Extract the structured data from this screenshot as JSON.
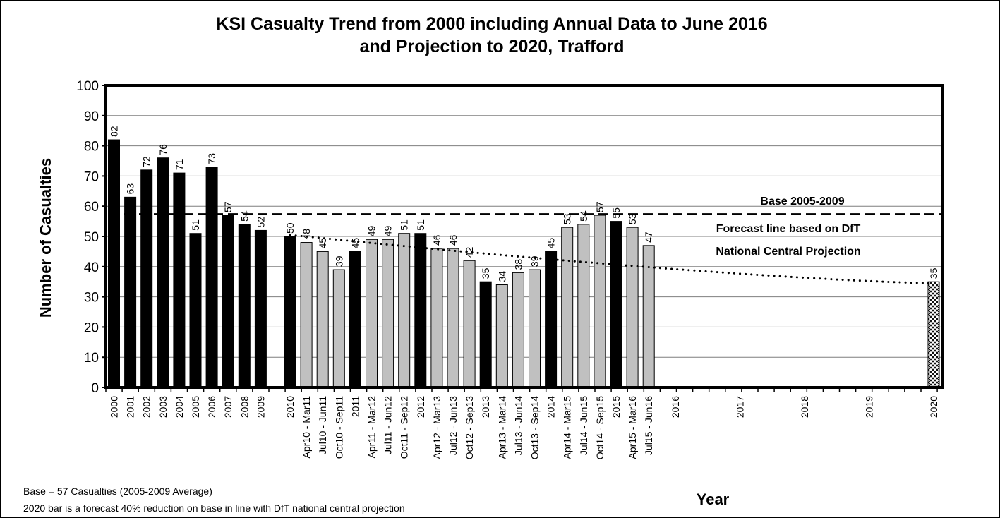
{
  "chart_data": {
    "type": "bar",
    "title_line1": "KSI Casualty Trend from 2000 including Annual Data to June 2016",
    "title_line2": "and Projection to 2020, Trafford",
    "xlabel": "Year",
    "ylabel": "Number of Casualties",
    "ylim": [
      0,
      100
    ],
    "yticks": [
      0,
      10,
      20,
      30,
      40,
      50,
      60,
      70,
      80,
      90,
      100
    ],
    "grid": true,
    "categories": [
      "2000",
      "2001",
      "2002",
      "2003",
      "2004",
      "2005",
      "2006",
      "2007",
      "2008",
      "2009",
      "2010",
      "Apr10 - Mar11",
      "Jul10 - Jun11",
      "Oct10 - Sep11",
      "2011",
      "Apr11 - Mar12",
      "Jul11 - Jun12",
      "Oct11 - Sep12",
      "2012",
      "Apr12 - Mar13",
      "Jul12 - Jun13",
      "Oct12 - Sep13",
      "2013",
      "Apr13 - Mar14",
      "Jul13 - Jun14",
      "Oct13 - Sep14",
      "2014",
      "Apr14 - Mar15",
      "Jul14 - Jun15",
      "Oct14 - Sep15",
      "2015",
      "Apr15 - Mar16",
      "Jul15 - Jun16",
      "2016",
      "2017",
      "2018",
      "2019",
      "2020"
    ],
    "values": [
      82,
      63,
      72,
      76,
      71,
      51,
      73,
      57,
      54,
      52,
      50,
      48,
      45,
      39,
      45,
      49,
      49,
      51,
      51,
      46,
      46,
      42,
      35,
      34,
      38,
      39,
      45,
      53,
      54,
      57,
      55,
      53,
      47,
      null,
      null,
      null,
      null,
      35
    ],
    "bar_kind": [
      "annual",
      "annual",
      "annual",
      "annual",
      "annual",
      "annual",
      "annual",
      "annual",
      "annual",
      "annual",
      "annual",
      "rolling",
      "rolling",
      "rolling",
      "annual",
      "rolling",
      "rolling",
      "rolling",
      "annual",
      "rolling",
      "rolling",
      "rolling",
      "annual",
      "rolling",
      "rolling",
      "rolling",
      "annual",
      "rolling",
      "rolling",
      "rolling",
      "annual",
      "rolling",
      "rolling",
      "none",
      "none",
      "none",
      "none",
      "forecast"
    ],
    "colors": {
      "annual": "#000000",
      "rolling": "#c0c0c0",
      "forecast": "#ffffff"
    },
    "base_line": {
      "value": 57.4,
      "label": "Base 2005-2009"
    },
    "forecast_line": {
      "label_line1": "Forecast line based on DfT",
      "label_line2": "National Central Projection",
      "start_value": 50.5,
      "end_value": 34.5
    }
  },
  "footnotes": {
    "line1": "Base = 57 Casualties (2005-2009 Average)",
    "line2": "2020 bar is a forecast 40% reduction on base in line with DfT national central projection"
  }
}
